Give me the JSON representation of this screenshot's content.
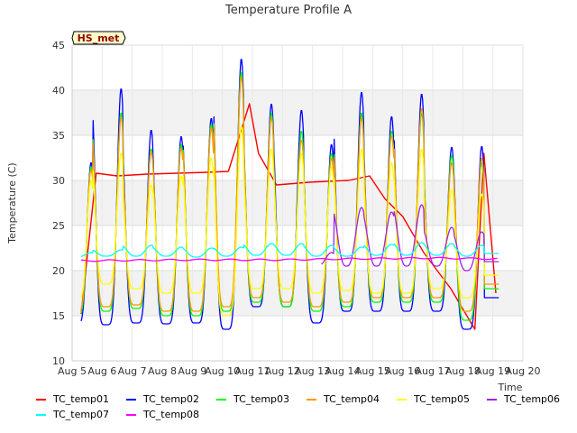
{
  "chart_data": {
    "type": "line",
    "title": "Temperature Profile A",
    "xlabel": "Time",
    "ylabel": "Temperature (C)",
    "annotation": "HS_met",
    "xlim": [
      "Aug 5",
      "Aug 20"
    ],
    "ylim": [
      10,
      45
    ],
    "x_ticks": [
      "Aug 5",
      "Aug 6",
      "Aug 7",
      "Aug 8",
      "Aug 9",
      "Aug 10",
      "Aug 11",
      "Aug 12",
      "Aug 13",
      "Aug 14",
      "Aug 15",
      "Aug 16",
      "Aug 17",
      "Aug 18",
      "Aug 19",
      "Aug 20"
    ],
    "y_ticks": [
      10,
      15,
      20,
      25,
      30,
      35,
      40,
      45
    ],
    "grid": "horizontal bands",
    "legend_position": "bottom",
    "series": [
      {
        "name": "TC_temp01",
        "color": "#ff0000",
        "points": [
          [
            0.3,
            15.2
          ],
          [
            0.8,
            30.8
          ],
          [
            1.5,
            30.5
          ],
          [
            2.5,
            30.7
          ],
          [
            3.5,
            30.8
          ],
          [
            4.5,
            30.9
          ],
          [
            5.2,
            31.0
          ],
          [
            5.9,
            38.5
          ],
          [
            6.2,
            33.0
          ],
          [
            6.8,
            29.5
          ],
          [
            7.9,
            29.8
          ],
          [
            9.2,
            30.0
          ],
          [
            9.9,
            30.5
          ],
          [
            10.4,
            28.0
          ],
          [
            11.0,
            26.0
          ],
          [
            11.7,
            22.0
          ],
          [
            12.6,
            18.0
          ],
          [
            13.4,
            13.5
          ],
          [
            13.7,
            33.0
          ],
          [
            14.1,
            17.5
          ]
        ]
      },
      {
        "name": "TC_temp02",
        "color": "#0000ff",
        "days": [
          [
            1,
            14.1,
            32.0
          ],
          [
            2,
            14.0,
            40.2
          ],
          [
            3,
            14.2,
            35.6
          ],
          [
            4,
            14.1,
            34.9
          ],
          [
            5,
            14.2,
            36.9
          ],
          [
            6,
            13.5,
            43.5
          ],
          [
            7,
            16.0,
            38.5
          ],
          [
            8,
            16.0,
            37.8
          ],
          [
            9,
            14.2,
            34.0
          ],
          [
            10,
            15.5,
            39.8
          ],
          [
            11,
            15.5,
            37.1
          ],
          [
            12,
            15.5,
            39.6
          ],
          [
            13,
            15.5,
            33.7
          ],
          [
            14,
            13.5,
            33.8
          ],
          [
            15,
            17.0,
            17.0
          ]
        ]
      },
      {
        "name": "TC_temp03",
        "color": "#00ff00",
        "days": [
          [
            1,
            15.0,
            31.5
          ],
          [
            2,
            15.5,
            37.5
          ],
          [
            3,
            15.8,
            33.5
          ],
          [
            4,
            15.0,
            34.0
          ],
          [
            5,
            15.0,
            36.2
          ],
          [
            6,
            15.5,
            42.0
          ],
          [
            7,
            16.5,
            37.5
          ],
          [
            8,
            16.0,
            35.5
          ],
          [
            9,
            15.5,
            33.0
          ],
          [
            10,
            16.0,
            37.5
          ],
          [
            11,
            16.5,
            35.5
          ],
          [
            12,
            16.5,
            37.5
          ],
          [
            13,
            16.5,
            32.8
          ],
          [
            14,
            14.5,
            32.0
          ],
          [
            15,
            18.0,
            18.0
          ]
        ]
      },
      {
        "name": "TC_temp04",
        "color": "#ff9900",
        "days": [
          [
            1,
            15.5,
            31.2
          ],
          [
            2,
            16.0,
            37.0
          ],
          [
            3,
            16.2,
            33.2
          ],
          [
            4,
            15.5,
            33.6
          ],
          [
            5,
            15.5,
            35.8
          ],
          [
            6,
            16.0,
            41.5
          ],
          [
            7,
            17.0,
            37.0
          ],
          [
            8,
            16.5,
            34.5
          ],
          [
            9,
            16.0,
            32.5
          ],
          [
            10,
            16.5,
            37.0
          ],
          [
            11,
            17.0,
            35.0
          ],
          [
            12,
            17.0,
            38.0
          ],
          [
            13,
            17.0,
            32.0
          ],
          [
            14,
            15.5,
            32.5
          ],
          [
            15,
            18.5,
            18.5
          ]
        ]
      },
      {
        "name": "TC_temp05",
        "color": "#ffff00",
        "days": [
          [
            1,
            16.8,
            30.0
          ],
          [
            2,
            18.5,
            33.0
          ],
          [
            3,
            18.0,
            29.5
          ],
          [
            4,
            17.5,
            30.5
          ],
          [
            5,
            17.5,
            32.5
          ],
          [
            6,
            15.0,
            36.0
          ],
          [
            7,
            18.0,
            33.5
          ],
          [
            8,
            18.0,
            33.0
          ],
          [
            9,
            17.5,
            31.5
          ],
          [
            10,
            17.8,
            33.5
          ],
          [
            11,
            17.5,
            32.0
          ],
          [
            12,
            17.5,
            33.5
          ],
          [
            13,
            18.0,
            29.0
          ],
          [
            14,
            17.0,
            28.5
          ],
          [
            15,
            19.5,
            19.5
          ]
        ]
      },
      {
        "name": "TC_temp06",
        "color": "#a020f0",
        "days": [
          [
            9,
            20.5,
            22.0
          ],
          [
            10,
            20.5,
            27.0
          ],
          [
            11,
            20.5,
            26.5
          ],
          [
            12,
            20.5,
            27.3
          ],
          [
            13,
            20.5,
            24.8
          ],
          [
            14,
            20.0,
            24.3
          ],
          [
            15,
            21.0,
            21.0
          ]
        ]
      },
      {
        "name": "TC_temp07",
        "color": "#00ffff",
        "days": [
          [
            1,
            21.5,
            22.0
          ],
          [
            2,
            21.6,
            22.3
          ],
          [
            3,
            21.6,
            22.8
          ],
          [
            4,
            21.6,
            22.6
          ],
          [
            5,
            21.5,
            22.5
          ],
          [
            6,
            21.6,
            22.6
          ],
          [
            7,
            21.7,
            23.0
          ],
          [
            8,
            21.7,
            23.0
          ],
          [
            9,
            21.6,
            22.8
          ],
          [
            10,
            21.6,
            22.6
          ],
          [
            11,
            21.7,
            22.9
          ],
          [
            12,
            21.7,
            23.1
          ],
          [
            13,
            21.7,
            23.0
          ],
          [
            14,
            21.6,
            22.8
          ],
          [
            15,
            21.9,
            21.9
          ]
        ]
      },
      {
        "name": "TC_temp08",
        "color": "#ff00ff",
        "trend": [
          [
            0.3,
            21.1
          ],
          [
            4,
            21.2
          ],
          [
            7,
            21.2
          ],
          [
            9,
            21.3
          ],
          [
            12,
            21.4
          ],
          [
            14.2,
            21.3
          ]
        ]
      }
    ]
  }
}
